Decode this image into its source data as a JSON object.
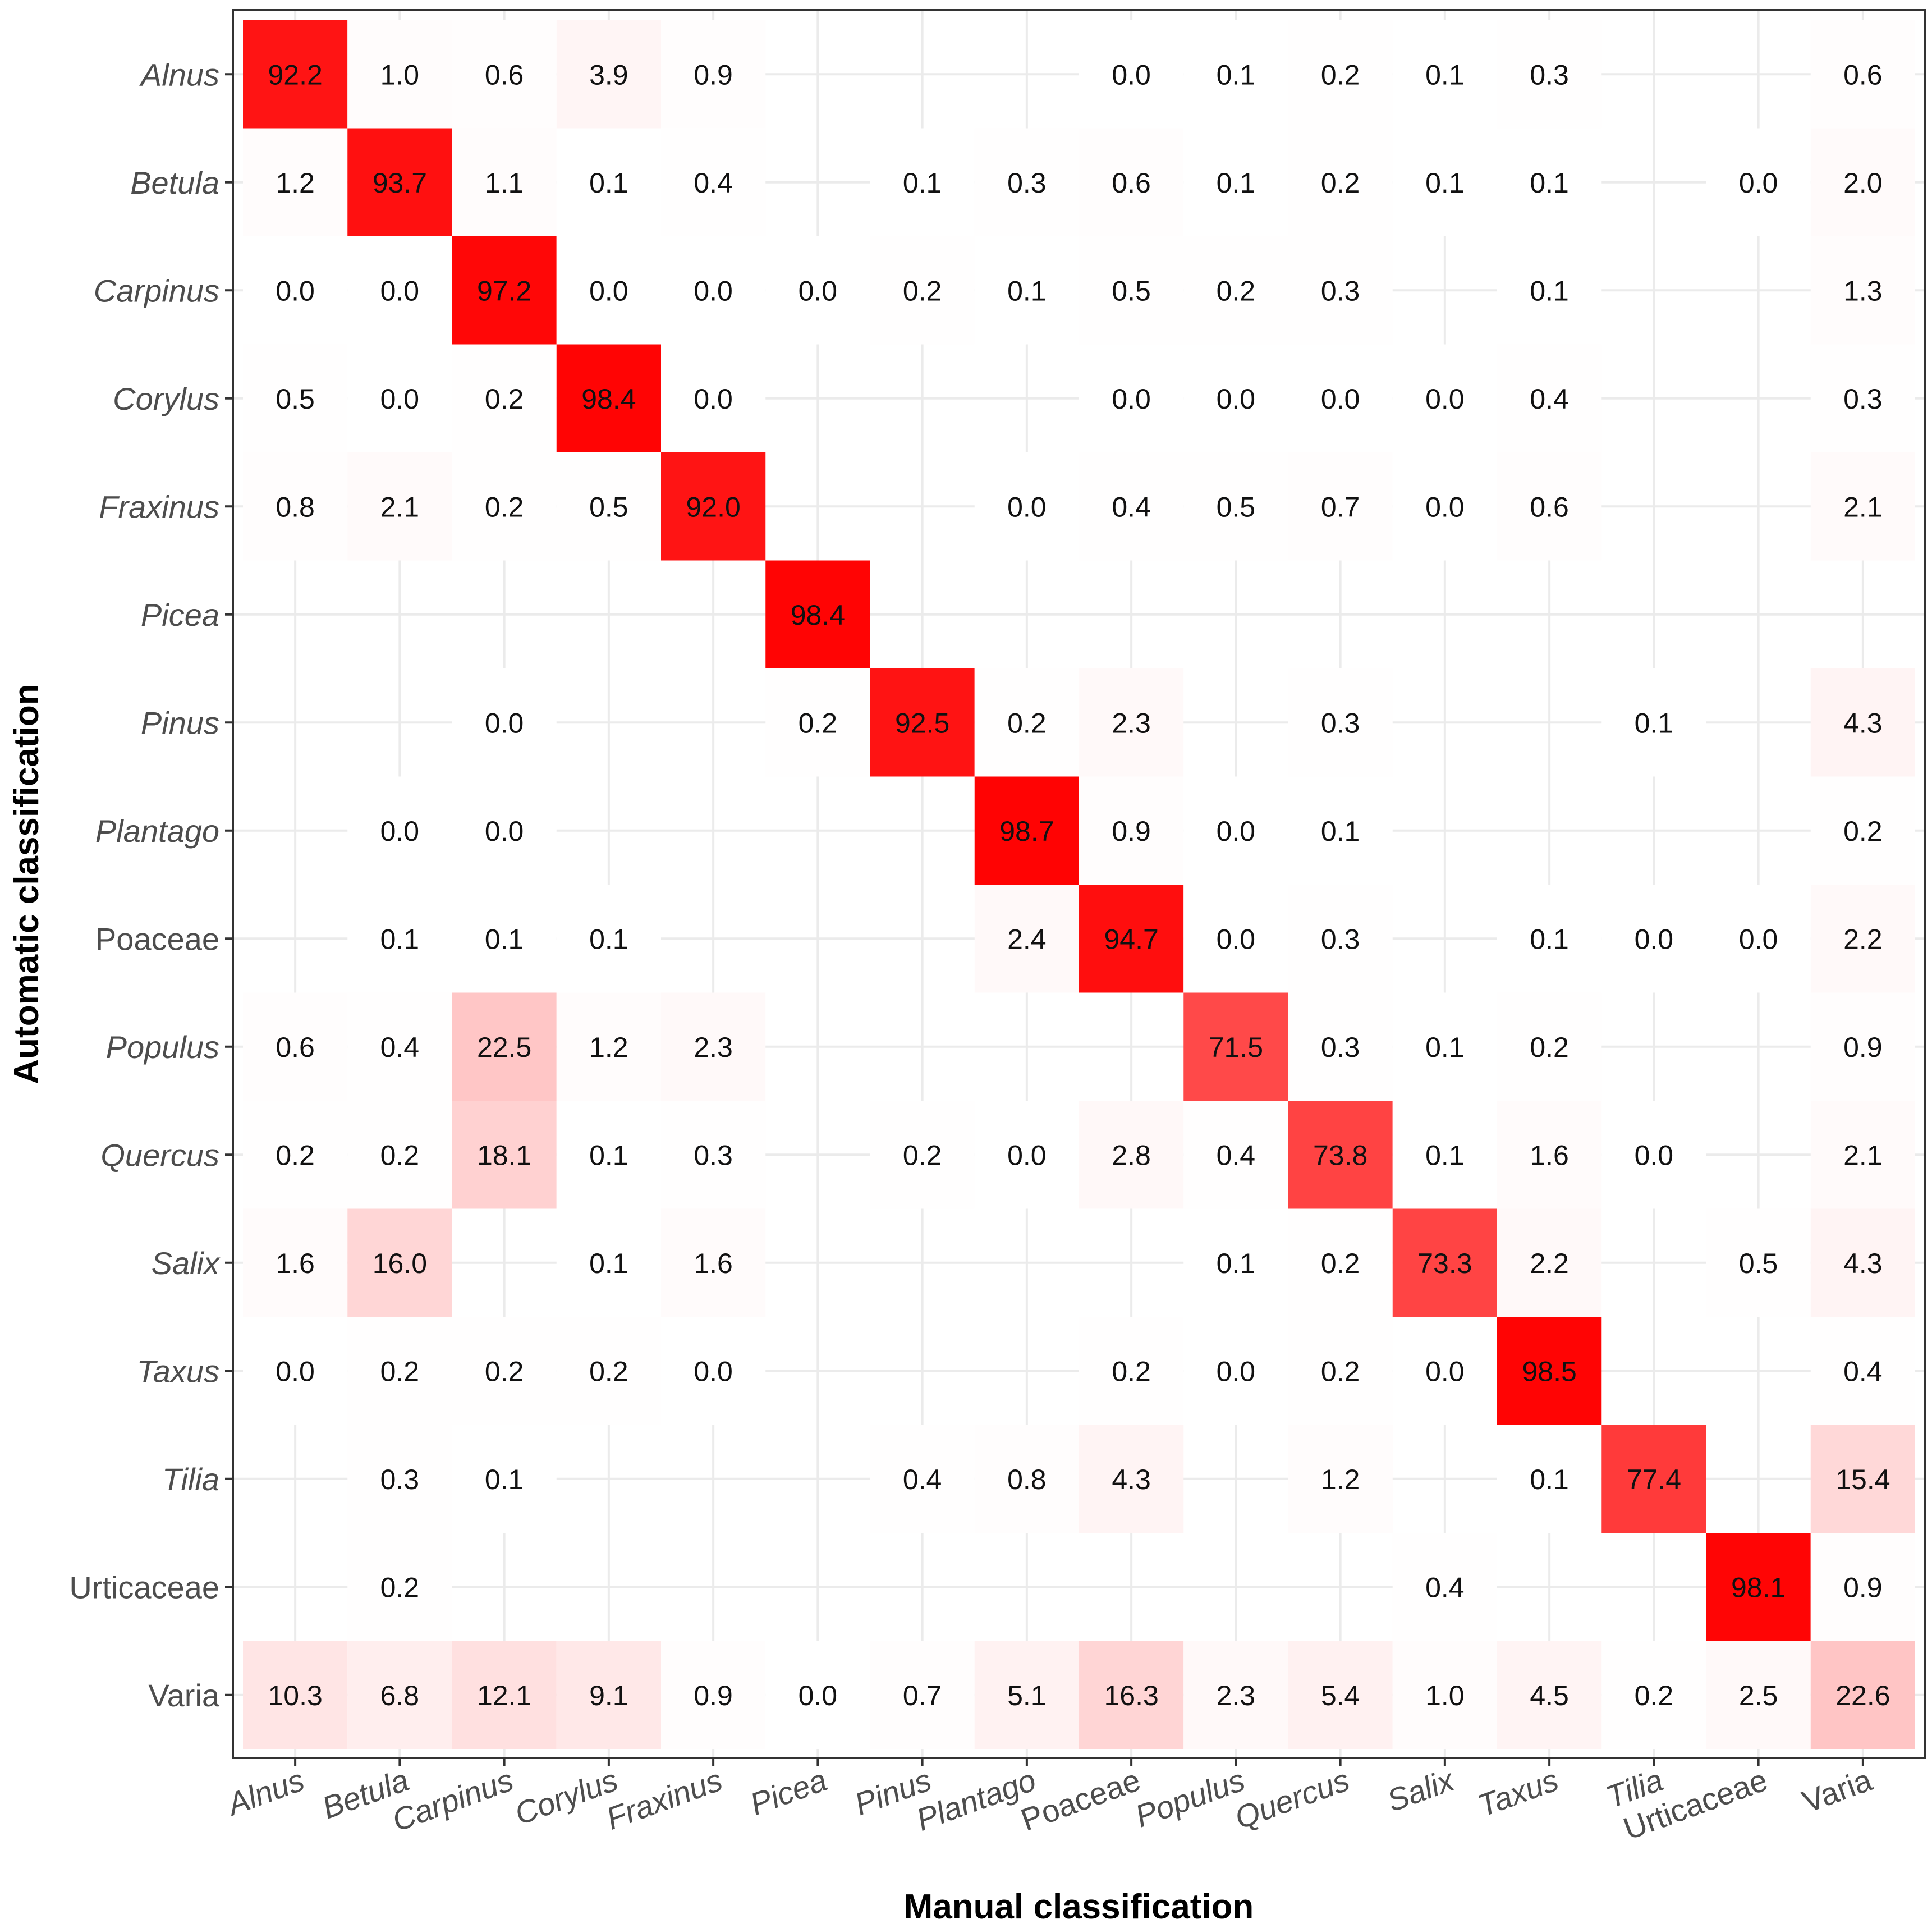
{
  "chart_data": {
    "type": "heatmap",
    "xlabel": "Manual classification",
    "ylabel": "Automatic classification",
    "categories": [
      "Alnus",
      "Betula",
      "Carpinus",
      "Corylus",
      "Fraxinus",
      "Picea",
      "Pinus",
      "Plantago",
      "Poaceae",
      "Populus",
      "Quercus",
      "Salix",
      "Taxus",
      "Tilia",
      "Urticaceae",
      "Varia"
    ],
    "italic_categories": [
      "Alnus",
      "Betula",
      "Carpinus",
      "Corylus",
      "Fraxinus",
      "Picea",
      "Pinus",
      "Plantago",
      "Populus",
      "Quercus",
      "Salix",
      "Taxus",
      "Tilia"
    ],
    "color_low": "#ffffff",
    "color_high": "#ff0000",
    "value_range": [
      0,
      100
    ],
    "grid": true,
    "cells": [
      {
        "row": "Alnus",
        "values": [
          92.2,
          1.0,
          0.6,
          3.9,
          0.9,
          null,
          null,
          null,
          0.0,
          0.1,
          0.2,
          0.1,
          0.3,
          null,
          null,
          0.6
        ]
      },
      {
        "row": "Betula",
        "values": [
          1.2,
          93.7,
          1.1,
          0.1,
          0.4,
          null,
          0.1,
          0.3,
          0.6,
          0.1,
          0.2,
          0.1,
          0.1,
          null,
          0.0,
          2.0
        ]
      },
      {
        "row": "Carpinus",
        "values": [
          0.0,
          0.0,
          97.2,
          0.0,
          0.0,
          0.0,
          0.2,
          0.1,
          0.5,
          0.2,
          0.3,
          null,
          0.1,
          null,
          null,
          1.3
        ]
      },
      {
        "row": "Corylus",
        "values": [
          0.5,
          0.0,
          0.2,
          98.4,
          0.0,
          null,
          null,
          null,
          0.0,
          0.0,
          0.0,
          0.0,
          0.4,
          null,
          null,
          0.3
        ]
      },
      {
        "row": "Fraxinus",
        "values": [
          0.8,
          2.1,
          0.2,
          0.5,
          92.0,
          null,
          null,
          0.0,
          0.4,
          0.5,
          0.7,
          0.0,
          0.6,
          null,
          null,
          2.1
        ]
      },
      {
        "row": "Picea",
        "values": [
          null,
          null,
          null,
          null,
          null,
          98.4,
          null,
          null,
          null,
          null,
          null,
          null,
          null,
          null,
          null,
          null
        ]
      },
      {
        "row": "Pinus",
        "values": [
          null,
          null,
          0.0,
          null,
          null,
          0.2,
          92.5,
          0.2,
          2.3,
          null,
          0.3,
          null,
          null,
          0.1,
          null,
          4.3
        ]
      },
      {
        "row": "Plantago",
        "values": [
          null,
          0.0,
          0.0,
          null,
          null,
          null,
          null,
          98.7,
          0.9,
          0.0,
          0.1,
          null,
          null,
          null,
          null,
          0.2
        ]
      },
      {
        "row": "Poaceae",
        "values": [
          null,
          0.1,
          0.1,
          0.1,
          null,
          null,
          null,
          2.4,
          94.7,
          0.0,
          0.3,
          null,
          0.1,
          0.0,
          0.0,
          2.2
        ]
      },
      {
        "row": "Populus",
        "values": [
          0.6,
          0.4,
          22.5,
          1.2,
          2.3,
          null,
          null,
          null,
          null,
          71.5,
          0.3,
          0.1,
          0.2,
          null,
          null,
          0.9
        ]
      },
      {
        "row": "Quercus",
        "values": [
          0.2,
          0.2,
          18.1,
          0.1,
          0.3,
          null,
          0.2,
          0.0,
          2.8,
          0.4,
          73.8,
          0.1,
          1.6,
          0.0,
          null,
          2.1
        ]
      },
      {
        "row": "Salix",
        "values": [
          1.6,
          16.0,
          null,
          0.1,
          1.6,
          null,
          null,
          null,
          null,
          0.1,
          0.2,
          73.3,
          2.2,
          null,
          0.5,
          4.3
        ]
      },
      {
        "row": "Taxus",
        "values": [
          0.0,
          0.2,
          0.2,
          0.2,
          0.0,
          null,
          null,
          null,
          0.2,
          0.0,
          0.2,
          0.0,
          98.5,
          null,
          null,
          0.4
        ]
      },
      {
        "row": "Tilia",
        "values": [
          null,
          0.3,
          0.1,
          null,
          null,
          null,
          0.4,
          0.8,
          4.3,
          null,
          1.2,
          null,
          0.1,
          77.4,
          null,
          15.4
        ]
      },
      {
        "row": "Urticaceae",
        "values": [
          null,
          0.2,
          null,
          null,
          null,
          null,
          null,
          null,
          null,
          null,
          null,
          0.4,
          null,
          null,
          98.1,
          0.9
        ]
      },
      {
        "row": "Varia",
        "values": [
          10.3,
          6.8,
          12.1,
          9.1,
          0.9,
          0.0,
          0.7,
          5.1,
          16.3,
          2.3,
          5.4,
          1.0,
          4.5,
          0.2,
          2.5,
          22.6
        ]
      }
    ]
  }
}
